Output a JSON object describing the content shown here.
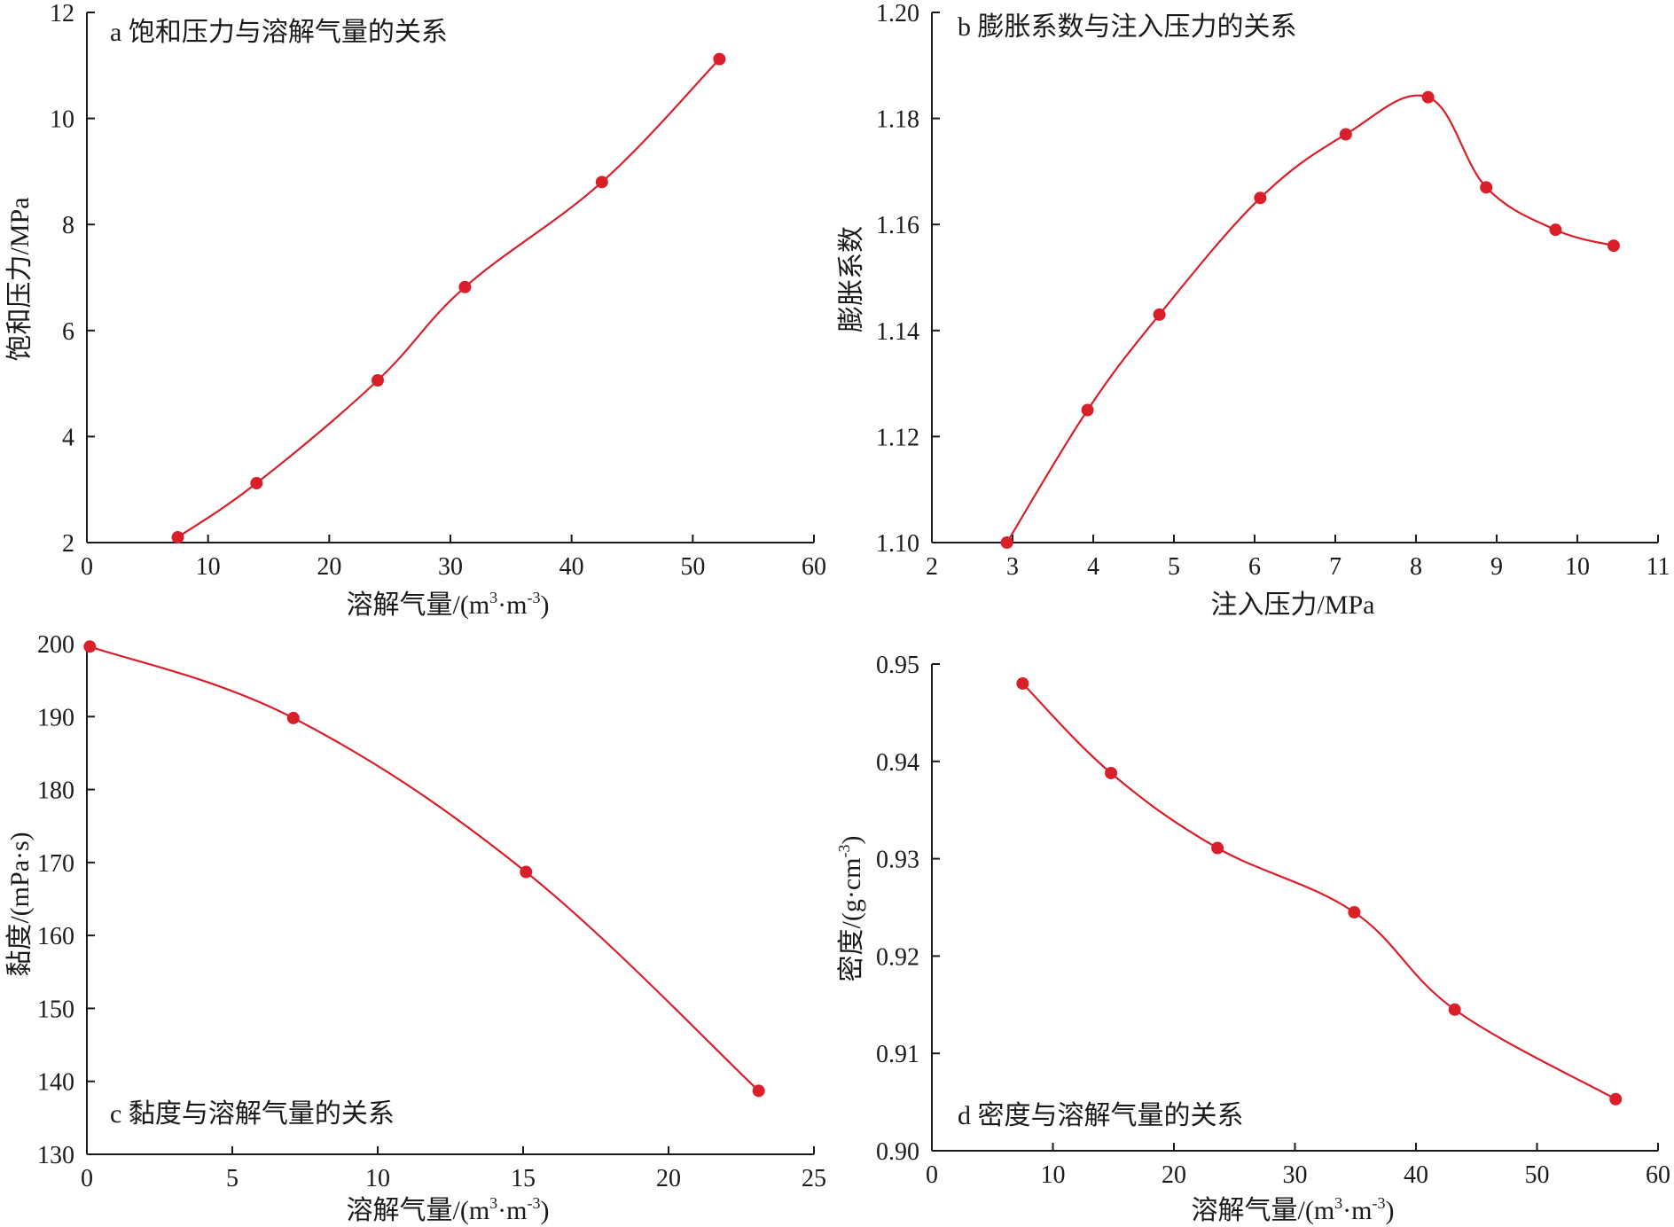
{
  "colors": {
    "series": "#d9202a",
    "axis": "#1a1a1a",
    "background": "#ffffff"
  },
  "chart_data": [
    {
      "id": "a",
      "type": "line",
      "title": "a 饱和压力与溶解气量的关系",
      "xlabel_main": "溶解气量/(m",
      "xlabel_sup1": "3",
      "xlabel_mid": "·m",
      "xlabel_sup2": "-3",
      "xlabel_end": ")",
      "ylabel": "饱和压力/MPa",
      "xlim": [
        0,
        60
      ],
      "ylim": [
        2,
        12
      ],
      "xticks": [
        0,
        10,
        20,
        30,
        40,
        50,
        60
      ],
      "yticks": [
        2,
        4,
        6,
        8,
        10,
        12
      ],
      "ytick_labels": [
        "2",
        "4",
        "6",
        "8",
        "10",
        "12"
      ],
      "grid": false,
      "x": [
        7.5,
        14.0,
        24.0,
        31.2,
        42.5,
        52.2
      ],
      "y": [
        2.1,
        3.12,
        5.06,
        6.82,
        8.8,
        11.12
      ]
    },
    {
      "id": "b",
      "type": "line",
      "title": "b 膨胀系数与注入压力的关系",
      "xlabel_main": "注入压力/MPa",
      "ylabel": "膨胀系数",
      "xlim": [
        2,
        11
      ],
      "ylim": [
        1.1,
        1.2
      ],
      "xticks": [
        2,
        3,
        4,
        5,
        6,
        7,
        8,
        9,
        10,
        11
      ],
      "yticks": [
        1.1,
        1.12,
        1.14,
        1.16,
        1.18,
        1.2
      ],
      "ytick_labels": [
        "1.10",
        "1.12",
        "1.14",
        "1.16",
        "1.18",
        "1.20"
      ],
      "grid": false,
      "x": [
        2.93,
        3.93,
        4.82,
        6.07,
        7.13,
        8.15,
        8.87,
        9.73,
        10.45
      ],
      "y": [
        1.1,
        1.125,
        1.143,
        1.165,
        1.177,
        1.184,
        1.167,
        1.159,
        1.156
      ]
    },
    {
      "id": "c",
      "type": "line",
      "title": "c 黏度与溶解气量的关系",
      "xlabel_main": "溶解气量/(m",
      "xlabel_sup1": "3",
      "xlabel_mid": "·m",
      "xlabel_sup2": "-3",
      "xlabel_end": ")",
      "ylabel": "黏度/(mPa·s)",
      "xlim": [
        0,
        25
      ],
      "ylim": [
        130,
        200
      ],
      "xticks": [
        0,
        5,
        10,
        15,
        20,
        25
      ],
      "yticks": [
        130,
        140,
        150,
        160,
        170,
        180,
        190,
        200
      ],
      "ytick_labels": [
        "130",
        "140",
        "150",
        "160",
        "170",
        "180",
        "190",
        "200"
      ],
      "grid": false,
      "x": [
        0.1,
        7.1,
        15.1,
        23.1
      ],
      "y": [
        199.6,
        189.8,
        168.7,
        138.7
      ]
    },
    {
      "id": "d",
      "type": "line",
      "title": "d 密度与溶解气量的关系",
      "xlabel_main": "溶解气量/(m",
      "xlabel_sup1": "3",
      "xlabel_mid": "·m",
      "xlabel_sup2": "-3",
      "xlabel_end": ")",
      "ylabel_main": "密度/(g·cm",
      "ylabel_sup": "-3",
      "ylabel_end": ")",
      "xlim": [
        0,
        60
      ],
      "ylim": [
        0.9,
        0.95
      ],
      "xticks": [
        0,
        10,
        20,
        30,
        40,
        50,
        60
      ],
      "yticks": [
        0.9,
        0.91,
        0.92,
        0.93,
        0.94,
        0.95
      ],
      "ytick_labels": [
        "0.90",
        "0.91",
        "0.92",
        "0.93",
        "0.94",
        "0.95"
      ],
      "grid": false,
      "x": [
        7.5,
        14.8,
        23.6,
        34.9,
        43.2,
        56.5
      ],
      "y": [
        0.948,
        0.9388,
        0.9311,
        0.9245,
        0.9145,
        0.9053
      ]
    }
  ]
}
